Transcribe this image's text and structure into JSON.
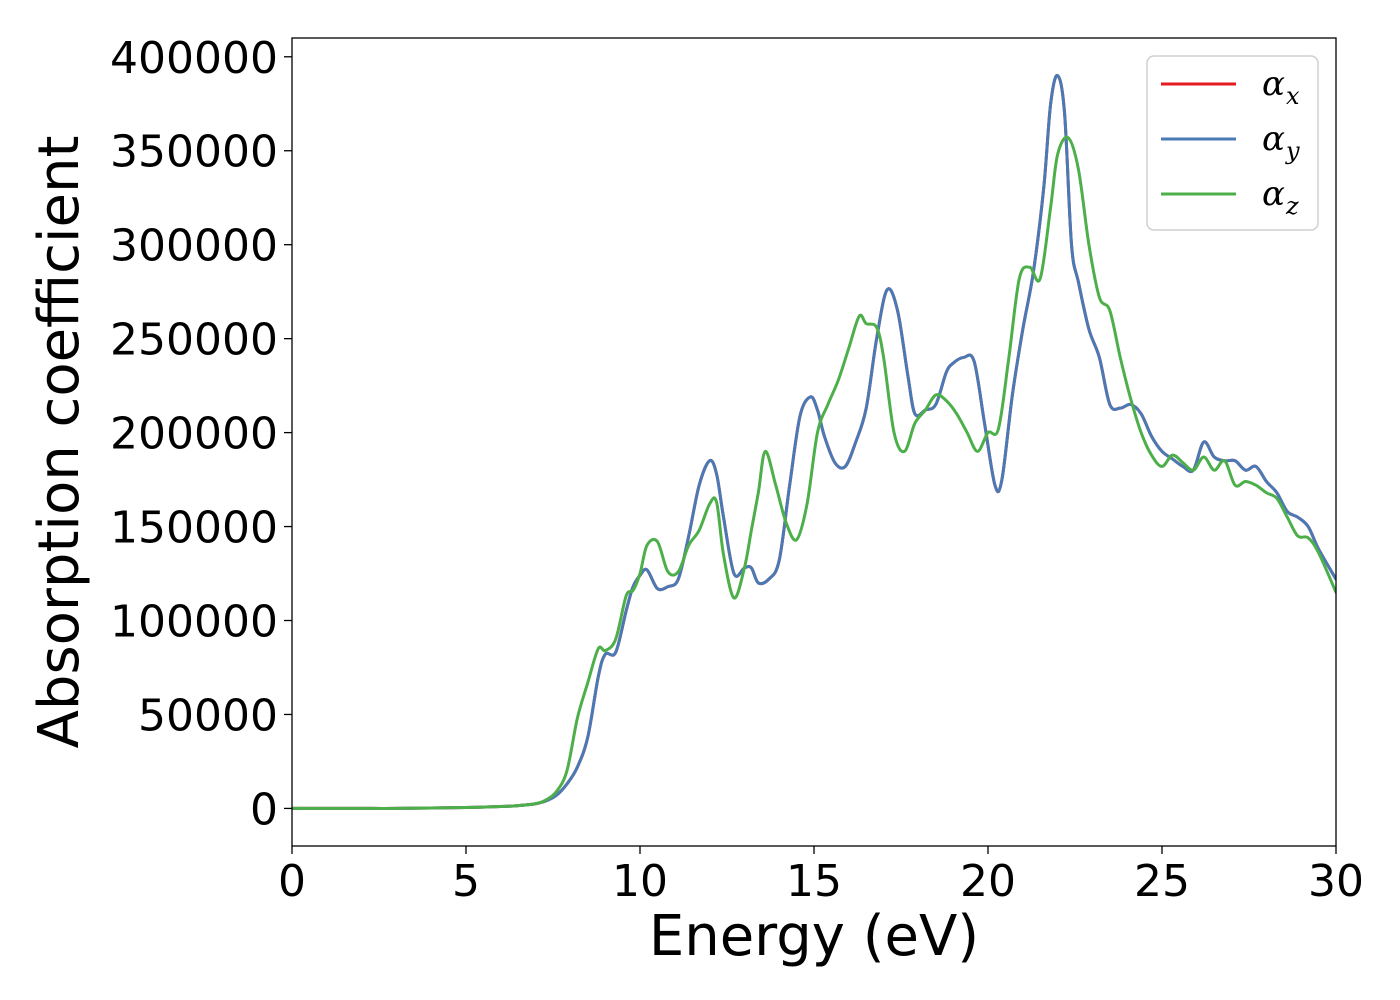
{
  "chart_data": {
    "type": "line",
    "title": "",
    "xlabel": "Energy (eV)",
    "ylabel": "Absorption coefficient",
    "xlim": [
      0,
      30
    ],
    "ylim": [
      -20000,
      410000
    ],
    "xticks": [
      0,
      5,
      10,
      15,
      20,
      25,
      30
    ],
    "yticks": [
      0,
      50000,
      100000,
      150000,
      200000,
      250000,
      300000,
      350000,
      400000
    ],
    "grid": false,
    "legend_position": "top-right",
    "series": [
      {
        "name": "αx",
        "legend_symbol": "α",
        "legend_subscript": "x",
        "color": "#e41a1c",
        "x": [
          0,
          1,
          2,
          3,
          4,
          5,
          6,
          6.5,
          7,
          7.3,
          7.6,
          7.9,
          8.2,
          8.5,
          8.8,
          9.0,
          9.3,
          9.6,
          9.8,
          10.0,
          10.2,
          10.5,
          10.8,
          11.1,
          11.4,
          11.7,
          12.0,
          12.2,
          12.4,
          12.7,
          13.0,
          13.2,
          13.4,
          13.7,
          14.0,
          14.3,
          14.6,
          14.9,
          15.1,
          15.3,
          15.6,
          15.9,
          16.2,
          16.5,
          16.8,
          17.1,
          17.4,
          17.7,
          17.9,
          18.2,
          18.5,
          18.8,
          19.0,
          19.3,
          19.6,
          19.9,
          20.2,
          20.4,
          20.7,
          21.0,
          21.3,
          21.6,
          21.8,
          22.0,
          22.2,
          22.4,
          22.6,
          22.9,
          23.2,
          23.5,
          23.8,
          24.1,
          24.4,
          24.7,
          25.0,
          25.3,
          25.6,
          25.9,
          26.2,
          26.5,
          26.8,
          27.1,
          27.4,
          27.7,
          28.0,
          28.3,
          28.6,
          28.9,
          29.2,
          29.5,
          30.0
        ],
        "y": [
          0,
          0,
          0,
          0,
          200,
          500,
          1000,
          1500,
          2500,
          4000,
          7000,
          13000,
          22000,
          38000,
          70000,
          82000,
          83000,
          105000,
          118000,
          124000,
          127000,
          117000,
          118000,
          122000,
          145000,
          172000,
          185000,
          178000,
          155000,
          125000,
          128000,
          128000,
          120000,
          122000,
          132000,
          172000,
          209000,
          219000,
          212000,
          198000,
          184000,
          182000,
          195000,
          213000,
          250000,
          276000,
          265000,
          230000,
          210000,
          212000,
          215000,
          232000,
          237000,
          240000,
          238000,
          205000,
          172000,
          175000,
          220000,
          255000,
          285000,
          330000,
          375000,
          390000,
          370000,
          300000,
          280000,
          255000,
          240000,
          215000,
          213000,
          215000,
          210000,
          198000,
          190000,
          186000,
          182000,
          180000,
          195000,
          187000,
          185000,
          185000,
          180000,
          182000,
          174000,
          168000,
          158000,
          155000,
          150000,
          138000,
          122000
        ]
      },
      {
        "name": "αy",
        "legend_symbol": "α",
        "legend_subscript": "y",
        "color": "#4a7ab5",
        "x": [
          0,
          1,
          2,
          3,
          4,
          5,
          6,
          6.5,
          7,
          7.3,
          7.6,
          7.9,
          8.2,
          8.5,
          8.8,
          9.0,
          9.3,
          9.6,
          9.8,
          10.0,
          10.2,
          10.5,
          10.8,
          11.1,
          11.4,
          11.7,
          12.0,
          12.2,
          12.4,
          12.7,
          13.0,
          13.2,
          13.4,
          13.7,
          14.0,
          14.3,
          14.6,
          14.9,
          15.1,
          15.3,
          15.6,
          15.9,
          16.2,
          16.5,
          16.8,
          17.1,
          17.4,
          17.7,
          17.9,
          18.2,
          18.5,
          18.8,
          19.0,
          19.3,
          19.6,
          19.9,
          20.2,
          20.4,
          20.7,
          21.0,
          21.3,
          21.6,
          21.8,
          22.0,
          22.2,
          22.4,
          22.6,
          22.9,
          23.2,
          23.5,
          23.8,
          24.1,
          24.4,
          24.7,
          25.0,
          25.3,
          25.6,
          25.9,
          26.2,
          26.5,
          26.8,
          27.1,
          27.4,
          27.7,
          28.0,
          28.3,
          28.6,
          28.9,
          29.2,
          29.5,
          30.0
        ],
        "y": [
          0,
          0,
          0,
          0,
          200,
          500,
          1000,
          1500,
          2500,
          4000,
          7000,
          13000,
          22000,
          38000,
          70000,
          82000,
          83000,
          105000,
          118000,
          124000,
          127000,
          117000,
          118000,
          122000,
          145000,
          172000,
          185000,
          178000,
          155000,
          125000,
          128000,
          128000,
          120000,
          122000,
          132000,
          172000,
          209000,
          219000,
          212000,
          198000,
          184000,
          182000,
          195000,
          213000,
          250000,
          276000,
          265000,
          230000,
          210000,
          212000,
          215000,
          232000,
          237000,
          240000,
          238000,
          205000,
          172000,
          175000,
          220000,
          255000,
          285000,
          330000,
          375000,
          390000,
          370000,
          300000,
          280000,
          255000,
          240000,
          215000,
          213000,
          215000,
          210000,
          198000,
          190000,
          186000,
          182000,
          180000,
          195000,
          187000,
          185000,
          185000,
          180000,
          182000,
          174000,
          168000,
          158000,
          155000,
          150000,
          138000,
          122000
        ]
      },
      {
        "name": "αz",
        "legend_symbol": "α",
        "legend_subscript": "z",
        "color": "#4daf4a",
        "x": [
          0,
          1,
          2,
          3,
          4,
          5,
          6,
          6.5,
          7,
          7.3,
          7.6,
          7.9,
          8.2,
          8.5,
          8.8,
          9.0,
          9.3,
          9.6,
          9.8,
          10.0,
          10.2,
          10.5,
          10.8,
          11.1,
          11.4,
          11.7,
          12.0,
          12.2,
          12.4,
          12.7,
          13.0,
          13.2,
          13.4,
          13.6,
          13.9,
          14.2,
          14.5,
          14.8,
          15.1,
          15.4,
          15.7,
          16.0,
          16.3,
          16.5,
          16.8,
          17.0,
          17.3,
          17.6,
          17.9,
          18.2,
          18.5,
          18.8,
          19.1,
          19.4,
          19.7,
          20.0,
          20.3,
          20.6,
          20.9,
          21.2,
          21.5,
          21.8,
          22.0,
          22.3,
          22.6,
          22.9,
          23.2,
          23.5,
          23.8,
          24.1,
          24.4,
          24.7,
          25.0,
          25.3,
          25.6,
          25.9,
          26.2,
          26.5,
          26.8,
          27.1,
          27.4,
          27.7,
          28.0,
          28.3,
          28.6,
          28.9,
          29.2,
          29.5,
          30.0
        ],
        "y": [
          0,
          0,
          0,
          0,
          200,
          500,
          1000,
          1500,
          2500,
          4500,
          9000,
          20000,
          48000,
          67000,
          85000,
          84000,
          90000,
          113000,
          116000,
          125000,
          140000,
          142000,
          126000,
          126000,
          140000,
          148000,
          162000,
          163000,
          135000,
          112000,
          128000,
          148000,
          168000,
          190000,
          172000,
          152000,
          143000,
          162000,
          200000,
          215000,
          228000,
          245000,
          262000,
          258000,
          256000,
          240000,
          200000,
          190000,
          205000,
          212000,
          220000,
          217000,
          210000,
          200000,
          190000,
          200000,
          202000,
          240000,
          282000,
          288000,
          282000,
          320000,
          348000,
          357000,
          340000,
          300000,
          272000,
          265000,
          240000,
          218000,
          200000,
          188000,
          182000,
          188000,
          184000,
          180000,
          187000,
          180000,
          185000,
          172000,
          174000,
          172000,
          168000,
          165000,
          155000,
          145000,
          144000,
          136000,
          115000
        ]
      }
    ]
  }
}
